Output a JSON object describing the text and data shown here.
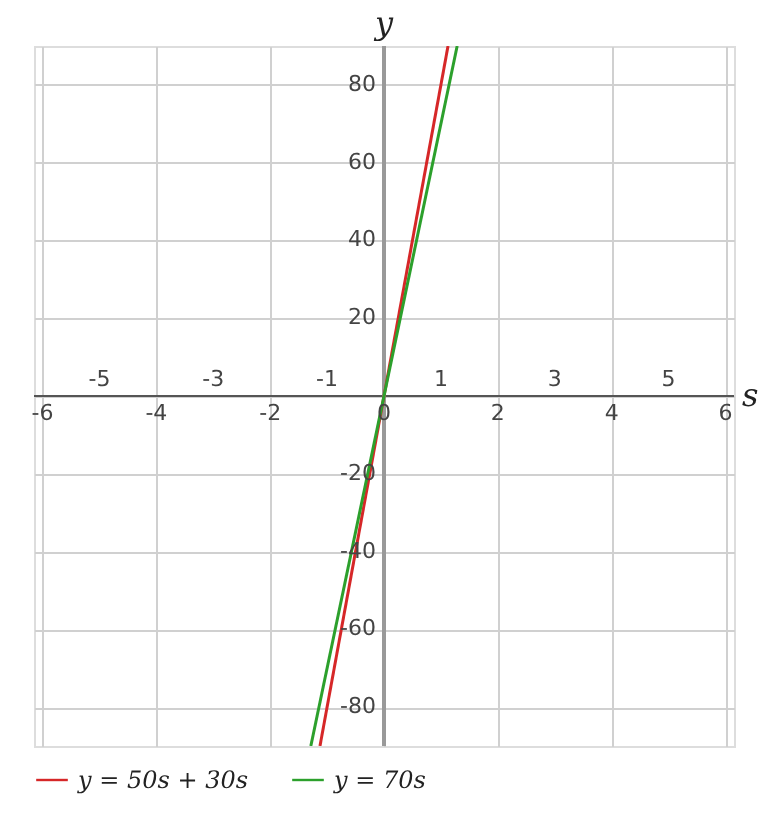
{
  "chart_data": {
    "type": "line",
    "xlabel": "s",
    "ylabel": "y",
    "series": [
      {
        "name": "y = 50s + 30s",
        "color": "#d62728",
        "x": [
          -1.125,
          1.125
        ],
        "values": [
          -90,
          90
        ]
      },
      {
        "name": "y = 70s",
        "color": "#2ca02c",
        "x": [
          -1.2857,
          1.2857
        ],
        "values": [
          -90,
          90
        ]
      }
    ],
    "xlim": [
      -6.15,
      6.15
    ],
    "ylim": [
      -90,
      90
    ],
    "xticks": [
      -6,
      -4,
      -2,
      0,
      2,
      4,
      6
    ],
    "x2lim": [
      -6.15,
      6.15
    ],
    "x2ticks": [
      -5,
      -3,
      -1,
      1,
      3,
      5
    ],
    "yticks": [
      -80,
      -60,
      -40,
      -20,
      {
        "value": 0,
        "label": null
      },
      20,
      40,
      60,
      80
    ],
    "grid": true,
    "legend": "bottom",
    "marker": "none",
    "line_style": "solid"
  }
}
